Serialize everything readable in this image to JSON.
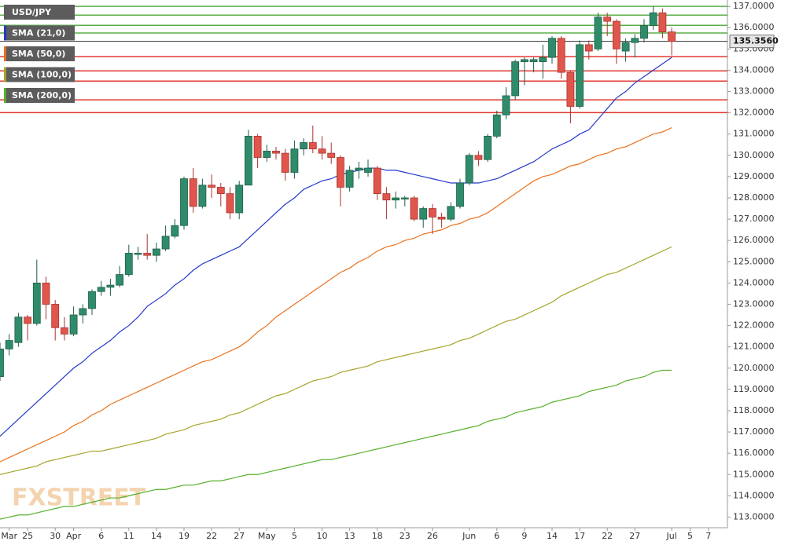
{
  "chart_data": {
    "type": "candlestick",
    "symbol": "USD/JPY",
    "watermark": "FXSTREET",
    "categories": [
      null,
      "Mar",
      null,
      "25",
      null,
      null,
      "30",
      null,
      "Apr",
      null,
      null,
      "6",
      null,
      null,
      "11",
      null,
      null,
      "14",
      null,
      null,
      "19",
      null,
      null,
      "22",
      null,
      null,
      "27",
      null,
      null,
      "May",
      null,
      null,
      "5",
      null,
      null,
      "10",
      null,
      null,
      "13",
      null,
      null,
      "18",
      null,
      null,
      "23",
      null,
      null,
      "26",
      null,
      null,
      null,
      "Jun",
      null,
      null,
      "6",
      null,
      null,
      "9",
      null,
      null,
      "14",
      null,
      null,
      "17",
      null,
      null,
      "22",
      null,
      null,
      "27",
      null,
      null,
      null,
      "Jul",
      null,
      "5",
      null,
      "7"
    ],
    "open": [
      119.6,
      120.9,
      121.2,
      122.4,
      122.1,
      124.0,
      123.0,
      121.9,
      121.6,
      122.5,
      122.8,
      123.6,
      123.8,
      123.9,
      124.4,
      125.4,
      125.4,
      125.3,
      125.6,
      126.2,
      126.7,
      128.9,
      127.6,
      128.6,
      128.5,
      128.2,
      127.3,
      128.6,
      130.9,
      129.9,
      130.2,
      130.1,
      129.2,
      130.3,
      130.6,
      130.3,
      130.1,
      129.9,
      128.5,
      129.3,
      129.2,
      129.4,
      128.2,
      127.9,
      128.0,
      128.0,
      127.0,
      127.5,
      127.1,
      127.0,
      127.6,
      128.7,
      130.0,
      129.8,
      130.9,
      131.9,
      132.8,
      134.4,
      134.4,
      134.4,
      134.6,
      135.5,
      133.9,
      132.3,
      135.2,
      135.0,
      136.5,
      136.3,
      134.9,
      135.3,
      135.5,
      136.1,
      136.7,
      135.8,
      null,
      null,
      null,
      null
    ],
    "high": [
      121.2,
      121.6,
      122.6,
      122.5,
      125.1,
      124.3,
      123.2,
      122.4,
      122.9,
      123.0,
      123.7,
      124.1,
      124.2,
      124.8,
      125.8,
      125.7,
      126.3,
      125.9,
      126.7,
      127.0,
      129.0,
      129.4,
      128.9,
      129.1,
      128.7,
      128.5,
      128.8,
      131.2,
      131.0,
      130.5,
      130.4,
      130.3,
      130.7,
      130.8,
      131.4,
      130.9,
      130.6,
      130.0,
      129.5,
      129.7,
      129.8,
      129.5,
      128.5,
      128.3,
      128.1,
      128.1,
      127.6,
      127.7,
      127.3,
      127.8,
      128.9,
      130.1,
      130.2,
      131.0,
      132.1,
      133.2,
      134.5,
      134.6,
      134.6,
      135.2,
      135.6,
      135.6,
      134.0,
      135.4,
      135.4,
      136.7,
      136.7,
      136.4,
      135.5,
      135.7,
      136.4,
      137.0,
      136.9,
      136.0,
      null,
      null,
      null,
      null
    ],
    "low": [
      119.4,
      120.6,
      121.0,
      121.3,
      122.0,
      122.3,
      121.3,
      121.3,
      121.5,
      122.1,
      122.5,
      123.4,
      123.4,
      123.8,
      124.3,
      125.1,
      125.1,
      125.0,
      125.5,
      126.1,
      126.5,
      127.3,
      127.5,
      128.0,
      127.6,
      127.0,
      127.0,
      128.6,
      129.4,
      129.7,
      129.8,
      128.8,
      128.9,
      130.0,
      130.1,
      129.8,
      129.6,
      127.6,
      128.3,
      128.9,
      129.0,
      127.9,
      127.0,
      127.5,
      127.6,
      126.9,
      126.6,
      126.3,
      126.6,
      126.9,
      127.5,
      128.6,
      129.5,
      129.7,
      130.8,
      131.7,
      132.6,
      133.3,
      133.9,
      133.6,
      134.3,
      133.6,
      131.5,
      132.2,
      134.5,
      134.9,
      135.6,
      134.3,
      134.4,
      134.6,
      135.3,
      135.9,
      135.5,
      134.7,
      null,
      null,
      null,
      null
    ],
    "close": [
      120.9,
      121.3,
      122.4,
      122.1,
      124.0,
      123.0,
      121.9,
      121.6,
      122.5,
      122.8,
      123.6,
      123.8,
      123.9,
      124.4,
      125.4,
      125.4,
      125.3,
      125.6,
      126.2,
      126.7,
      128.9,
      127.6,
      128.6,
      128.5,
      128.2,
      127.3,
      128.6,
      130.9,
      129.9,
      130.2,
      130.1,
      129.2,
      130.3,
      130.6,
      130.3,
      130.1,
      129.9,
      128.5,
      129.3,
      129.4,
      129.4,
      128.2,
      127.9,
      128.0,
      128.0,
      127.0,
      127.5,
      127.1,
      127.0,
      127.6,
      128.7,
      130.0,
      129.8,
      130.9,
      131.9,
      132.8,
      134.4,
      134.5,
      134.5,
      134.6,
      135.5,
      133.9,
      132.3,
      135.2,
      134.9,
      136.5,
      136.3,
      135.0,
      135.3,
      135.5,
      136.1,
      136.7,
      135.8,
      135.356,
      null,
      null,
      null,
      null
    ],
    "up_color": "#2f8c6b",
    "down_color": "#e0564c",
    "series": [
      {
        "name": "SMA (21,0)",
        "color": "#2438c8",
        "values": [
          116.8,
          117.2,
          117.6,
          118.0,
          118.4,
          118.8,
          119.2,
          119.6,
          120.0,
          120.3,
          120.7,
          121.0,
          121.3,
          121.7,
          122.0,
          122.4,
          122.9,
          123.2,
          123.5,
          123.9,
          124.2,
          124.6,
          124.9,
          125.1,
          125.3,
          125.5,
          125.7,
          126.1,
          126.5,
          126.9,
          127.3,
          127.7,
          128.0,
          128.4,
          128.6,
          128.8,
          128.9,
          129.1,
          129.2,
          129.3,
          129.4,
          129.4,
          129.3,
          129.3,
          129.2,
          129.1,
          129.0,
          128.9,
          128.8,
          128.7,
          128.7,
          128.7,
          128.7,
          128.8,
          128.9,
          129.1,
          129.3,
          129.5,
          129.7,
          130.0,
          130.3,
          130.5,
          130.7,
          131.0,
          131.2,
          131.7,
          132.2,
          132.7,
          133.0,
          133.4,
          133.7,
          134.0,
          134.3,
          134.6,
          null,
          null,
          null,
          null
        ]
      },
      {
        "name": "SMA (50,0)",
        "color": "#e8711c",
        "values": [
          115.6,
          115.8,
          116.0,
          116.2,
          116.4,
          116.6,
          116.8,
          117.0,
          117.3,
          117.5,
          117.8,
          118.0,
          118.3,
          118.5,
          118.7,
          118.9,
          119.1,
          119.3,
          119.5,
          119.7,
          119.9,
          120.1,
          120.3,
          120.4,
          120.6,
          120.8,
          121.0,
          121.3,
          121.7,
          122.0,
          122.4,
          122.7,
          123.0,
          123.3,
          123.6,
          123.9,
          124.2,
          124.5,
          124.7,
          125.0,
          125.2,
          125.5,
          125.7,
          125.8,
          126.0,
          126.1,
          126.3,
          126.4,
          126.5,
          126.7,
          126.8,
          127.0,
          127.1,
          127.3,
          127.6,
          127.9,
          128.2,
          128.5,
          128.8,
          129.0,
          129.1,
          129.3,
          129.5,
          129.6,
          129.8,
          130.0,
          130.1,
          130.3,
          130.4,
          130.6,
          130.8,
          131.0,
          131.1,
          131.3,
          null,
          null,
          null,
          null
        ]
      },
      {
        "name": "SMA (100,0)",
        "color": "#a6a428",
        "values": [
          115.0,
          115.1,
          115.2,
          115.3,
          115.4,
          115.6,
          115.7,
          115.8,
          115.9,
          116.0,
          116.1,
          116.1,
          116.2,
          116.3,
          116.4,
          116.5,
          116.6,
          116.7,
          116.9,
          117.0,
          117.1,
          117.3,
          117.4,
          117.5,
          117.6,
          117.8,
          117.9,
          118.1,
          118.3,
          118.5,
          118.7,
          118.8,
          119.0,
          119.2,
          119.4,
          119.5,
          119.6,
          119.8,
          119.9,
          120.0,
          120.1,
          120.3,
          120.4,
          120.5,
          120.6,
          120.7,
          120.8,
          120.9,
          121.0,
          121.1,
          121.3,
          121.4,
          121.6,
          121.8,
          122.0,
          122.2,
          122.3,
          122.5,
          122.7,
          122.9,
          123.1,
          123.4,
          123.6,
          123.8,
          124.0,
          124.2,
          124.4,
          124.5,
          124.7,
          124.9,
          125.1,
          125.3,
          125.5,
          125.7,
          null,
          null,
          null,
          null
        ]
      },
      {
        "name": "SMA (200,0)",
        "color": "#56b02a",
        "values": [
          112.9,
          113.0,
          113.1,
          113.1,
          113.2,
          113.3,
          113.4,
          113.5,
          113.5,
          113.6,
          113.7,
          113.8,
          113.9,
          113.9,
          114.0,
          114.1,
          114.2,
          114.3,
          114.3,
          114.4,
          114.5,
          114.5,
          114.6,
          114.7,
          114.7,
          114.8,
          114.9,
          115.0,
          115.0,
          115.1,
          115.2,
          115.3,
          115.4,
          115.5,
          115.6,
          115.7,
          115.7,
          115.8,
          115.9,
          116.0,
          116.1,
          116.2,
          116.3,
          116.4,
          116.5,
          116.6,
          116.7,
          116.8,
          116.9,
          117.0,
          117.1,
          117.2,
          117.3,
          117.5,
          117.6,
          117.7,
          117.9,
          118.0,
          118.1,
          118.2,
          118.4,
          118.5,
          118.6,
          118.7,
          118.9,
          119.0,
          119.1,
          119.2,
          119.4,
          119.5,
          119.6,
          119.8,
          119.9,
          119.9,
          null,
          null,
          null,
          null
        ]
      }
    ],
    "levels": [
      {
        "value": 137.0,
        "color": "#5aae4a"
      },
      {
        "value": 136.59,
        "color": "#5aae4a"
      },
      {
        "value": 136.11,
        "color": "#5aae4a"
      },
      {
        "value": 135.75,
        "color": "#5aae4a"
      },
      {
        "value": 134.64,
        "color": "#e03a30"
      },
      {
        "value": 133.97,
        "color": "#e03a30"
      },
      {
        "value": 133.49,
        "color": "#e03a30"
      },
      {
        "value": 132.61,
        "color": "#e03a30"
      },
      {
        "value": 132.01,
        "color": "#e03a30"
      }
    ],
    "last_price": {
      "value": 135.356,
      "label": "135.3560"
    },
    "ylim": [
      112.5,
      137.3
    ],
    "yticks": [
      {
        "value": 113,
        "label": "113.0000"
      },
      {
        "value": 114,
        "label": "114.0000"
      },
      {
        "value": 115,
        "label": "115.0000"
      },
      {
        "value": 116,
        "label": "116.0000"
      },
      {
        "value": 117,
        "label": "117.0000"
      },
      {
        "value": 118,
        "label": "118.0000"
      },
      {
        "value": 119,
        "label": "119.0000"
      },
      {
        "value": 120,
        "label": "120.0000"
      },
      {
        "value": 121,
        "label": "121.0000"
      },
      {
        "value": 122,
        "label": "122.0000"
      },
      {
        "value": 123,
        "label": "123.0000"
      },
      {
        "value": 124,
        "label": "124.0000"
      },
      {
        "value": 125,
        "label": "125.0000"
      },
      {
        "value": 126,
        "label": "126.0000"
      },
      {
        "value": 127,
        "label": "127.0000"
      },
      {
        "value": 128,
        "label": "128.0000"
      },
      {
        "value": 129,
        "label": "129.0000"
      },
      {
        "value": 130,
        "label": "130.0000"
      },
      {
        "value": 131,
        "label": "131.0000"
      },
      {
        "value": 132,
        "label": "132.0000"
      },
      {
        "value": 133,
        "label": "133.0000"
      },
      {
        "value": 134,
        "label": "134.0000"
      },
      {
        "value": 135,
        "label": "135.0000"
      },
      {
        "value": 136,
        "label": "136.0000"
      },
      {
        "value": 137,
        "label": "137.0000"
      }
    ]
  }
}
